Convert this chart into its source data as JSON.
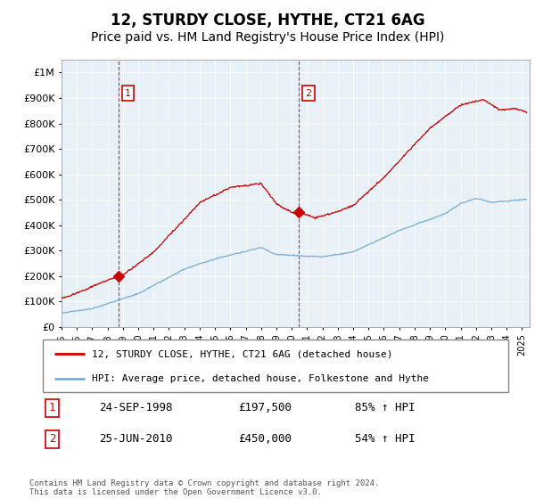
{
  "title": "12, STURDY CLOSE, HYTHE, CT21 6AG",
  "subtitle": "Price paid vs. HM Land Registry's House Price Index (HPI)",
  "ytick_values": [
    0,
    100000,
    200000,
    300000,
    400000,
    500000,
    600000,
    700000,
    800000,
    900000,
    1000000
  ],
  "ylim": [
    0,
    1050000
  ],
  "xlim_start": 1995.0,
  "xlim_end": 2025.5,
  "sale1_x": 1998.73,
  "sale1_y": 197500,
  "sale1_label": "1",
  "sale1_date": "24-SEP-1998",
  "sale1_price": "£197,500",
  "sale1_hpi": "85% ↑ HPI",
  "sale2_x": 2010.48,
  "sale2_y": 450000,
  "sale2_label": "2",
  "sale2_date": "25-JUN-2010",
  "sale2_price": "£450,000",
  "sale2_hpi": "54% ↑ HPI",
  "line1_color": "#cc0000",
  "line2_color": "#7aadd4",
  "fill_color": "#dce9f5",
  "vline_color": "#cc0000",
  "legend1_label": "12, STURDY CLOSE, HYTHE, CT21 6AG (detached house)",
  "legend2_label": "HPI: Average price, detached house, Folkestone and Hythe",
  "footnote": "Contains HM Land Registry data © Crown copyright and database right 2024.\nThis data is licensed under the Open Government Licence v3.0.",
  "background_color": "#ffffff",
  "chart_bg_color": "#e8f0f8",
  "grid_color": "#ffffff",
  "title_fontsize": 12,
  "subtitle_fontsize": 10
}
